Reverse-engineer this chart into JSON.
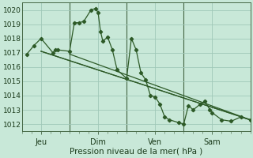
{
  "background_color": "#c8e8d8",
  "grid_color": "#a0c8b8",
  "line_color": "#2d5a27",
  "marker_color": "#2d5a27",
  "xlabel": "Pression niveau de la mer( hPa )",
  "ylim": [
    1011.5,
    1020.5
  ],
  "yticks": [
    1012,
    1013,
    1014,
    1015,
    1016,
    1017,
    1018,
    1019,
    1020
  ],
  "xlim": [
    0,
    96
  ],
  "day_positions": [
    8,
    32,
    56,
    80
  ],
  "day_labels": [
    "Jeu",
    "Dim",
    "Ven",
    "Sam"
  ],
  "vline_positions": [
    20,
    44,
    68
  ],
  "series_main": {
    "x": [
      2,
      5,
      8,
      13,
      14,
      15,
      20,
      22,
      24,
      26,
      29,
      31,
      32,
      33,
      34,
      36,
      38,
      40,
      44,
      46,
      48,
      50,
      52,
      54,
      56,
      58,
      60,
      62,
      66,
      68,
      70,
      72,
      75,
      77,
      79,
      80,
      84,
      88,
      92,
      96
    ],
    "y": [
      1016.9,
      1017.5,
      1018.0,
      1017.0,
      1017.2,
      1017.2,
      1017.1,
      1019.1,
      1019.1,
      1019.2,
      1020.0,
      1020.1,
      1019.8,
      1018.5,
      1017.8,
      1018.1,
      1017.2,
      1015.8,
      1015.2,
      1018.0,
      1017.2,
      1015.6,
      1015.1,
      1014.0,
      1013.9,
      1013.4,
      1012.5,
      1012.3,
      1012.1,
      1012.0,
      1013.3,
      1013.0,
      1013.4,
      1013.6,
      1013.0,
      1012.8,
      1012.3,
      1012.2,
      1012.5,
      1012.3
    ]
  },
  "series_trend1": {
    "x": [
      8,
      96
    ],
    "y": [
      1017.1,
      1012.3
    ]
  },
  "series_trend2": {
    "x": [
      8,
      96
    ],
    "y": [
      1017.1,
      1012.3
    ]
  },
  "series_trend3": {
    "x": [
      20,
      96
    ],
    "y": [
      1017.1,
      1012.3
    ]
  },
  "figsize": [
    3.2,
    2.0
  ],
  "dpi": 100
}
